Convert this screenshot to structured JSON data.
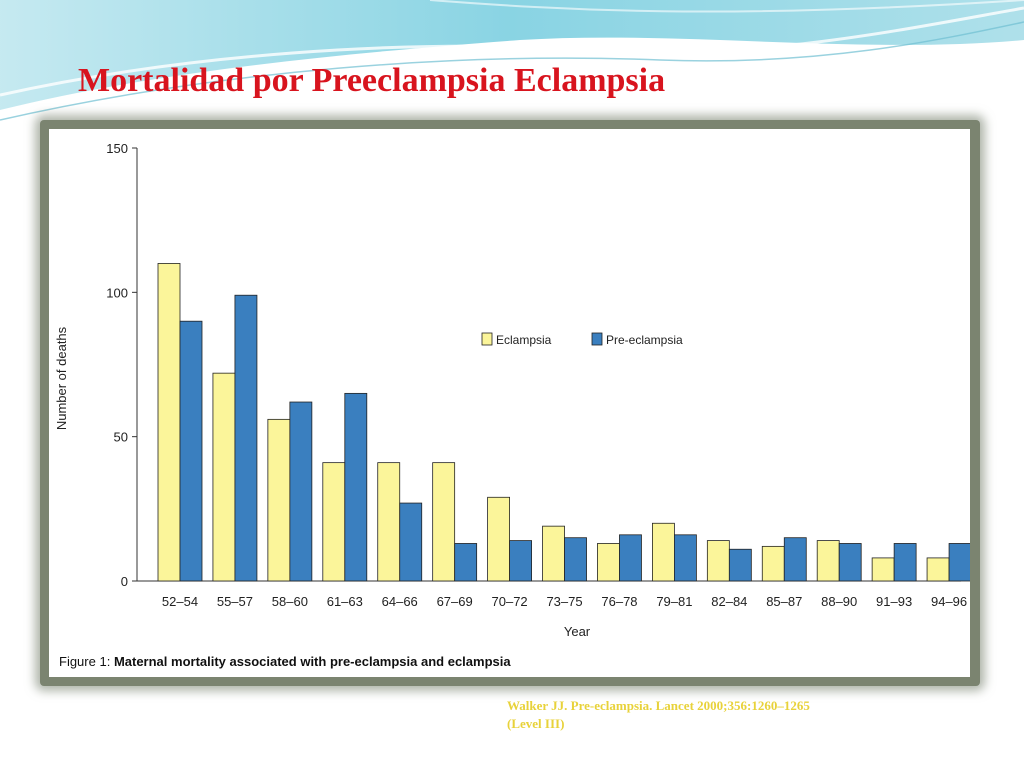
{
  "slide": {
    "title": "Mortalidad por Preeclampsia Eclampsia",
    "caption_prefix": "Figure 1:",
    "caption_text": "Maternal mortality associated with pre-eclampsia and eclampsia",
    "citation_line1": "Walker JJ. Pre-eclampsia. Lancet 2000;356:1260–1265",
    "citation_line2": "(Level III)"
  },
  "chart_data": {
    "type": "bar",
    "title": "",
    "xlabel": "Year",
    "ylabel": "Number of deaths",
    "ylim": [
      0,
      150
    ],
    "yticks": [
      0,
      50,
      100,
      150
    ],
    "grid": false,
    "legend_position": "center-right",
    "categories": [
      "52–54",
      "55–57",
      "58–60",
      "61–63",
      "64–66",
      "67–69",
      "70–72",
      "73–75",
      "76–78",
      "79–81",
      "82–84",
      "85–87",
      "88–90",
      "91–93",
      "94–96"
    ],
    "series": [
      {
        "name": "Eclampsia",
        "color": "#fbf59a",
        "values": [
          110,
          72,
          56,
          41,
          41,
          41,
          29,
          19,
          13,
          20,
          14,
          12,
          14,
          8,
          8
        ]
      },
      {
        "name": "Pre-eclampsia",
        "color": "#3a7fbf",
        "values": [
          90,
          99,
          62,
          65,
          27,
          13,
          14,
          15,
          16,
          16,
          11,
          15,
          13,
          13,
          13
        ]
      }
    ]
  }
}
